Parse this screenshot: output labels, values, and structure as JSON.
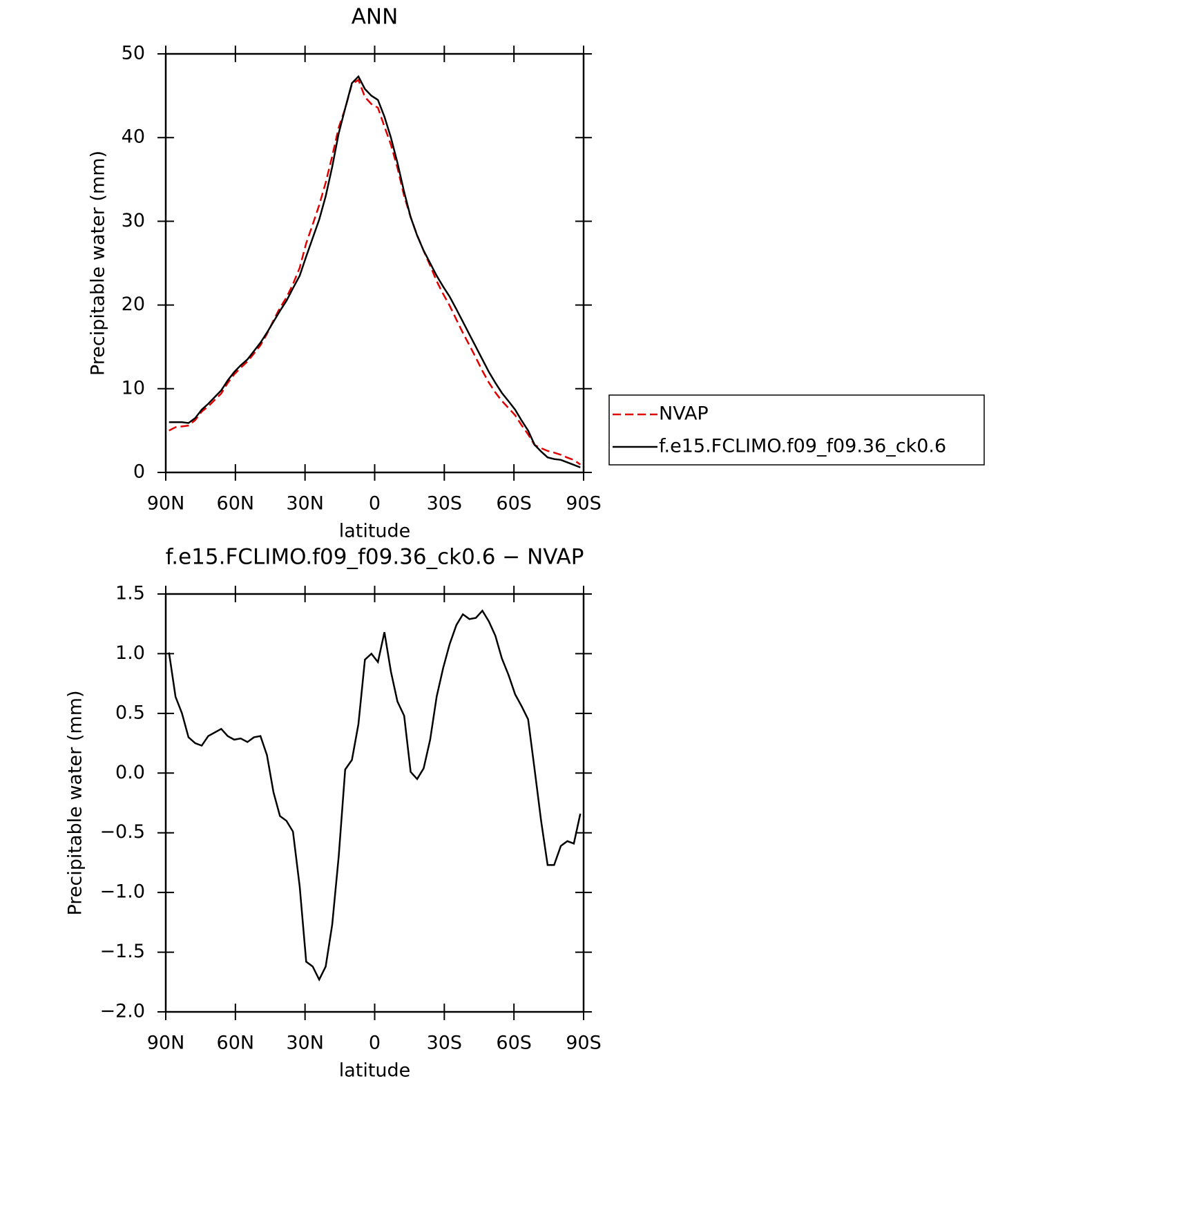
{
  "chart_data": [
    {
      "type": "line",
      "title": "ANN",
      "xlabel": "latitude",
      "ylabel": "Precipitable water (mm)",
      "x": [
        88.6,
        85.8,
        83.0,
        80.2,
        77.3,
        74.5,
        71.7,
        68.9,
        66.1,
        63.3,
        60.5,
        57.7,
        54.8,
        52.0,
        49.2,
        46.4,
        43.6,
        40.8,
        38.0,
        35.2,
        32.3,
        29.5,
        26.7,
        23.9,
        21.1,
        18.3,
        15.5,
        12.7,
        9.8,
        7.0,
        4.2,
        1.4,
        -1.4,
        -4.2,
        -7.0,
        -9.8,
        -12.7,
        -15.5,
        -18.3,
        -21.1,
        -23.9,
        -26.7,
        -29.5,
        -32.3,
        -35.2,
        -38.0,
        -40.8,
        -43.6,
        -46.4,
        -49.2,
        -52.0,
        -54.8,
        -57.7,
        -60.5,
        -63.3,
        -66.1,
        -68.9,
        -71.7,
        -74.5,
        -77.3,
        -80.2,
        -83.0,
        -85.8,
        -88.6
      ],
      "series": [
        {
          "name": "NVAP",
          "color": "#e00000",
          "linestyle": "dashed",
          "values": [
            5.0,
            5.4,
            5.5,
            5.6,
            6.25,
            7.27,
            7.89,
            8.66,
            9.43,
            10.69,
            11.72,
            12.51,
            13.24,
            14.2,
            15.19,
            16.55,
            18.16,
            19.66,
            20.9,
            22.49,
            24.45,
            27.38,
            29.62,
            31.93,
            34.62,
            37.77,
            41.2,
            43.47,
            46.39,
            46.89,
            44.85,
            44.0,
            43.57,
            41.32,
            39.15,
            36.4,
            33.02,
            30.49,
            28.35,
            26.46,
            24.72,
            22.86,
            21.32,
            19.92,
            18.26,
            16.67,
            15.21,
            13.7,
            12.14,
            10.73,
            9.55,
            8.54,
            7.68,
            6.84,
            5.64,
            4.55,
            3.27,
            2.9,
            2.57,
            2.37,
            2.11,
            1.77,
            1.49,
            0.94
          ]
        },
        {
          "name": "f.e15.FCLIMO.f09_f09.36_ck0.6",
          "color": "#000000",
          "linestyle": "solid",
          "values": [
            6.0,
            6.0,
            6.0,
            5.9,
            6.5,
            7.5,
            8.2,
            9.0,
            9.8,
            11.0,
            12.0,
            12.8,
            13.5,
            14.5,
            15.5,
            16.7,
            18.0,
            19.3,
            20.5,
            22.0,
            23.5,
            25.8,
            28.0,
            30.2,
            33.0,
            36.5,
            40.5,
            43.5,
            46.5,
            47.3,
            45.8,
            45.0,
            44.5,
            42.5,
            40.0,
            37.0,
            33.5,
            30.5,
            28.3,
            26.5,
            25.0,
            23.5,
            22.2,
            21.0,
            19.5,
            18.0,
            16.5,
            15.0,
            13.5,
            12.0,
            10.7,
            9.5,
            8.5,
            7.5,
            6.2,
            5.0,
            3.3,
            2.5,
            1.8,
            1.6,
            1.5,
            1.2,
            0.9,
            0.6
          ]
        }
      ],
      "xlim": [
        90,
        -90
      ],
      "xticks": [
        {
          "value": 90,
          "label": "90N"
        },
        {
          "value": 60,
          "label": "60N"
        },
        {
          "value": 30,
          "label": "30N"
        },
        0,
        {
          "value": -30,
          "label": "30S"
        },
        {
          "value": -60,
          "label": "60S"
        },
        {
          "value": -90,
          "label": "90S"
        }
      ],
      "ylim": [
        0,
        50
      ],
      "yticks": [
        0,
        10,
        20,
        30,
        40,
        50
      ]
    },
    {
      "type": "line",
      "title": "f.e15.FCLIMO.f09_f09.36_ck0.6 − NVAP",
      "xlabel": "latitude",
      "ylabel": "Precipitable water (mm)",
      "x": [
        88.6,
        85.8,
        83.0,
        80.2,
        77.3,
        74.5,
        71.7,
        68.9,
        66.1,
        63.3,
        60.5,
        57.7,
        54.8,
        52.0,
        49.2,
        46.4,
        43.6,
        40.8,
        38.0,
        35.2,
        32.3,
        29.5,
        26.7,
        23.9,
        21.1,
        18.3,
        15.5,
        12.7,
        9.8,
        7.0,
        4.2,
        1.4,
        -1.4,
        -4.2,
        -7.0,
        -9.8,
        -12.7,
        -15.5,
        -18.3,
        -21.1,
        -23.9,
        -26.7,
        -29.5,
        -32.3,
        -35.2,
        -38.0,
        -40.8,
        -43.6,
        -46.4,
        -49.2,
        -52.0,
        -54.8,
        -57.7,
        -60.5,
        -63.3,
        -66.1,
        -68.9,
        -71.7,
        -74.5,
        -77.3,
        -80.2,
        -83.0,
        -85.8,
        -88.6
      ],
      "series": [
        {
          "color": "#000000",
          "linestyle": "solid",
          "values": [
            1.01,
            0.64,
            0.5,
            0.3,
            0.25,
            0.23,
            0.31,
            0.34,
            0.37,
            0.31,
            0.28,
            0.29,
            0.26,
            0.3,
            0.31,
            0.15,
            -0.16,
            -0.36,
            -0.4,
            -0.49,
            -0.95,
            -1.58,
            -1.62,
            -1.73,
            -1.62,
            -1.27,
            -0.7,
            0.03,
            0.11,
            0.41,
            0.95,
            1.0,
            0.93,
            1.18,
            0.85,
            0.6,
            0.48,
            0.01,
            -0.05,
            0.04,
            0.28,
            0.64,
            0.88,
            1.08,
            1.24,
            1.33,
            1.29,
            1.3,
            1.36,
            1.27,
            1.15,
            0.96,
            0.82,
            0.66,
            0.56,
            0.45,
            0.03,
            -0.4,
            -0.77,
            -0.77,
            -0.61,
            -0.57,
            -0.59,
            -0.34
          ]
        }
      ],
      "xlim": [
        90,
        -90
      ],
      "xticks": [
        {
          "value": 90,
          "label": "90N"
        },
        {
          "value": 60,
          "label": "60N"
        },
        {
          "value": 30,
          "label": "30N"
        },
        0,
        {
          "value": -30,
          "label": "30S"
        },
        {
          "value": -60,
          "label": "60S"
        },
        {
          "value": -90,
          "label": "90S"
        }
      ],
      "ylim": [
        -2.0,
        1.5
      ],
      "yticks": [
        {
          "value": -2.0,
          "label": "−2.0"
        },
        {
          "value": -1.5,
          "label": "−1.5"
        },
        {
          "value": -1.0,
          "label": "−1.0"
        },
        {
          "value": -0.5,
          "label": "−0.5"
        },
        {
          "value": 0.0,
          "label": "0.0"
        },
        0.5,
        {
          "value": 1.0,
          "label": "1.0"
        },
        1.5
      ]
    }
  ]
}
